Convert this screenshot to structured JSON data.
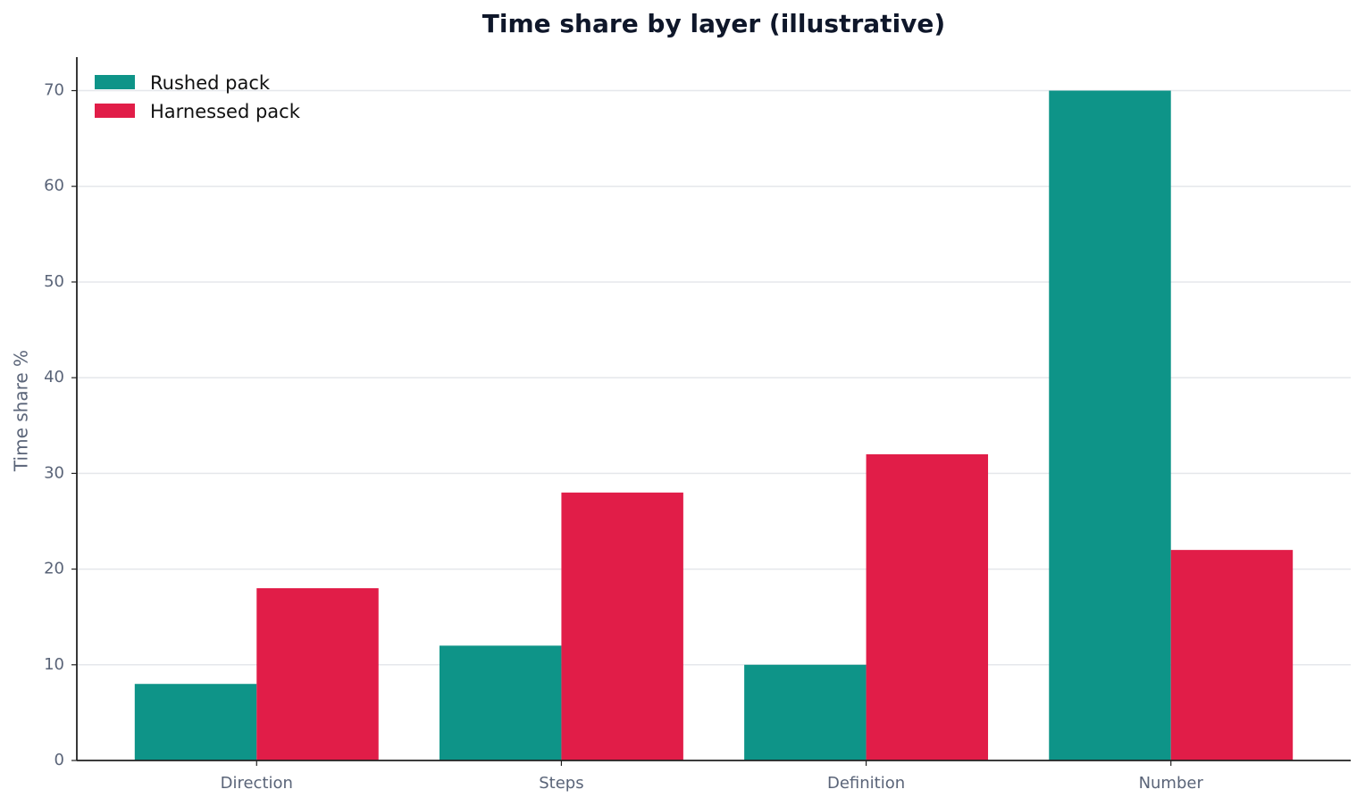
{
  "chart_data": {
    "type": "bar",
    "title": "Time share by layer (illustrative)",
    "y_label": "Time share %",
    "categories": [
      "Direction",
      "Steps",
      "Definition",
      "Number"
    ],
    "series": [
      {
        "name": "Rushed pack",
        "color": "#0e9488",
        "values": [
          8,
          12,
          10,
          70
        ]
      },
      {
        "name": "Harnessed pack",
        "color": "#e11d48",
        "values": [
          18,
          28,
          32,
          22
        ]
      }
    ],
    "ylim": [
      0,
      73.5
    ],
    "yticks": [
      0,
      10,
      20,
      30,
      40,
      50,
      60,
      70
    ],
    "grid": true,
    "legend": "upper left"
  }
}
